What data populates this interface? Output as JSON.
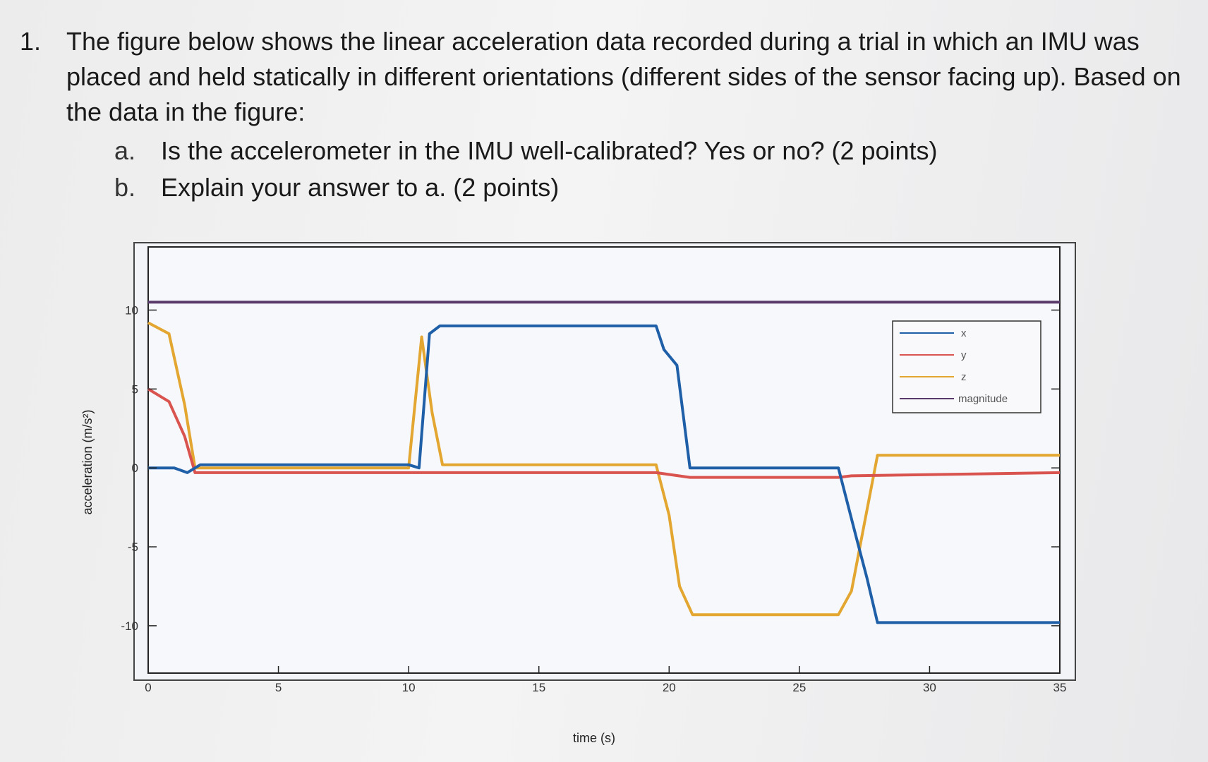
{
  "question": {
    "number": "1.",
    "text": "The figure below shows the linear acceleration data recorded during a trial in which an IMU was placed and held statically in different orientations (different sides of the sensor facing up). Based on the data in the figure:",
    "parts": [
      {
        "label": "a.",
        "text": "Is the accelerometer in the IMU well-calibrated? Yes or no? (2 points)"
      },
      {
        "label": "b.",
        "text": "Explain your answer to a. (2 points)"
      }
    ]
  },
  "chart_data": {
    "type": "line",
    "xlabel": "time (s)",
    "ylabel": "acceleration (m/s²)",
    "xlim": [
      0,
      35
    ],
    "ylim": [
      -13,
      14
    ],
    "xticks": [
      0,
      5,
      10,
      15,
      20,
      25,
      30,
      35
    ],
    "yticks": [
      -10,
      -5,
      0,
      5,
      10
    ],
    "grid": false,
    "legend_position": "top-right",
    "series": [
      {
        "name": "x",
        "color": "#1f5fa8",
        "points": [
          [
            0,
            0
          ],
          [
            1.0,
            0
          ],
          [
            1.5,
            -0.3
          ],
          [
            2.0,
            0.2
          ],
          [
            10.0,
            0.2
          ],
          [
            10.4,
            0
          ],
          [
            10.8,
            8.5
          ],
          [
            11.2,
            9.0
          ],
          [
            19.5,
            9.0
          ],
          [
            19.8,
            7.5
          ],
          [
            20.3,
            6.5
          ],
          [
            20.8,
            0
          ],
          [
            26.5,
            0
          ],
          [
            27.2,
            -4.5
          ],
          [
            27.6,
            -7
          ],
          [
            28.0,
            -9.8
          ],
          [
            35,
            -9.8
          ]
        ]
      },
      {
        "name": "y",
        "color": "#d9534f",
        "points": [
          [
            0,
            5.0
          ],
          [
            0.8,
            4.2
          ],
          [
            1.4,
            2.0
          ],
          [
            1.8,
            -0.3
          ],
          [
            10.0,
            -0.3
          ],
          [
            11.0,
            -0.3
          ],
          [
            19.5,
            -0.3
          ],
          [
            20.8,
            -0.6
          ],
          [
            26.5,
            -0.6
          ],
          [
            27.0,
            -0.5
          ],
          [
            35,
            -0.3
          ]
        ]
      },
      {
        "name": "z",
        "color": "#e3a630",
        "points": [
          [
            0,
            9.2
          ],
          [
            0.8,
            8.5
          ],
          [
            1.4,
            4.0
          ],
          [
            1.8,
            0
          ],
          [
            10.0,
            0
          ],
          [
            10.5,
            8.3
          ],
          [
            10.9,
            3.5
          ],
          [
            11.3,
            0.2
          ],
          [
            19.5,
            0.2
          ],
          [
            20.0,
            -3.0
          ],
          [
            20.4,
            -7.5
          ],
          [
            20.9,
            -9.3
          ],
          [
            26.5,
            -9.3
          ],
          [
            27.0,
            -7.8
          ],
          [
            27.5,
            -3.5
          ],
          [
            28.0,
            0.8
          ],
          [
            35,
            0.8
          ]
        ]
      },
      {
        "name": "magnitude",
        "color": "#5a3a6a",
        "points": [
          [
            0,
            10.5
          ],
          [
            35,
            10.5
          ]
        ]
      }
    ]
  },
  "colors": {
    "x": "#1f5fa8",
    "y": "#d9534f",
    "z": "#e3a630",
    "magnitude": "#5a3a6a"
  }
}
